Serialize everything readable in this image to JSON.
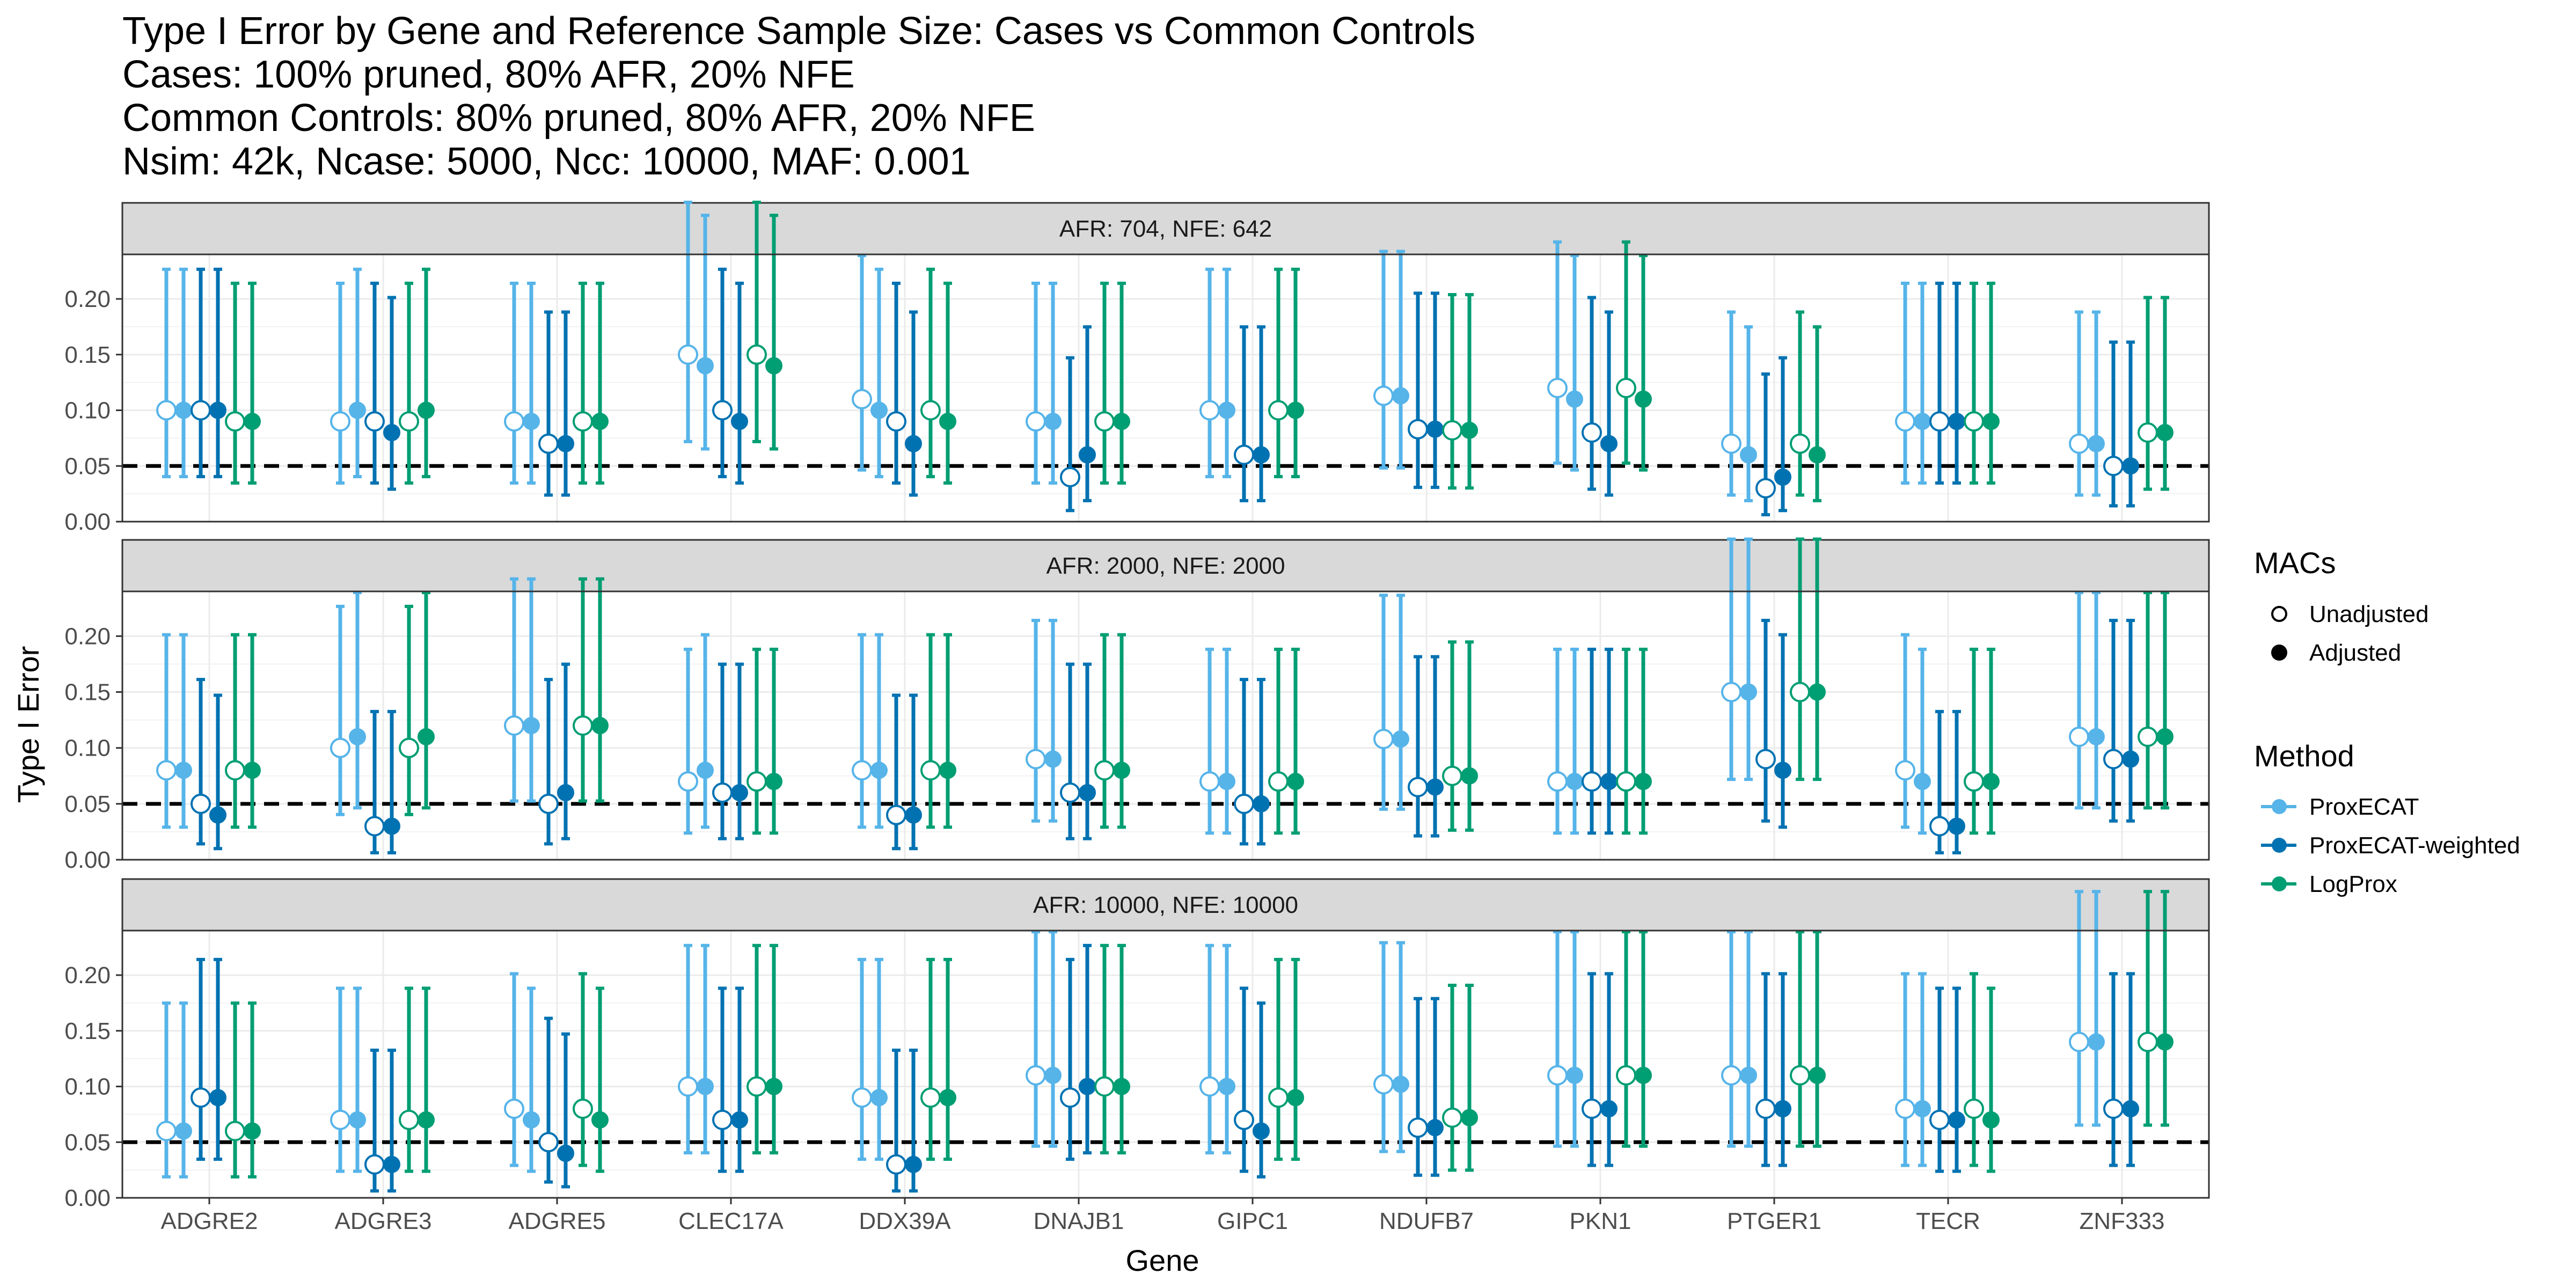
{
  "chart_data": {
    "type": "scatter",
    "title_lines": [
      "Type I Error by Gene and Reference Sample Size: Cases vs Common Controls",
      "Cases: 100% pruned, 80% AFR, 20% NFE",
      "Common Controls: 80% pruned, 80% AFR, 20% NFE",
      "Nsim: 42k, Ncase: 5000, Ncc: 10000, MAF: 0.001"
    ],
    "xlabel": "Gene",
    "ylabel": "Type I Error",
    "ylim": [
      0,
      0.24
    ],
    "yticks": [
      0.0,
      0.05,
      0.1,
      0.15,
      0.2
    ],
    "ytick_labels": [
      "0.00",
      "0.05",
      "0.10",
      "0.15",
      "0.20"
    ],
    "reference_line": 0.05,
    "genes": [
      "ADGRE2",
      "ADGRE3",
      "ADGRE5",
      "CLEC17A",
      "DDX39A",
      "DNAJB1",
      "GIPC1",
      "NDUFB7",
      "PKN1",
      "PTGER1",
      "TECR",
      "ZNF333"
    ],
    "methods": [
      {
        "name": "ProxECAT",
        "color": "#56B4E9"
      },
      {
        "name": "ProxECAT-weighted",
        "color": "#0072B2"
      },
      {
        "name": "LogProx",
        "color": "#009E73"
      }
    ],
    "macs": [
      {
        "name": "Unadjusted",
        "shape": "open-circle"
      },
      {
        "name": "Adjusted",
        "shape": "filled-circle"
      }
    ],
    "legend": {
      "macs_title": "MACs",
      "method_title": "Method",
      "placement": "right"
    },
    "panels": [
      {
        "label": "AFR: 704, NFE: 642",
        "values": {
          "ProxECAT": {
            "Unadjusted": [
              0.1,
              0.09,
              0.09,
              0.15,
              0.11,
              0.09,
              0.1,
              0.113,
              0.12,
              0.07,
              0.09,
              0.07
            ],
            "Adjusted": [
              0.1,
              0.1,
              0.09,
              0.14,
              0.1,
              0.09,
              0.1,
              0.113,
              0.11,
              0.06,
              0.09,
              0.07
            ]
          },
          "ProxECAT-weighted": {
            "Unadjusted": [
              0.1,
              0.09,
              0.07,
              0.1,
              0.09,
              0.04,
              0.06,
              0.083,
              0.08,
              0.03,
              0.09,
              0.05
            ],
            "Adjusted": [
              0.1,
              0.08,
              0.07,
              0.09,
              0.07,
              0.06,
              0.06,
              0.083,
              0.07,
              0.04,
              0.09,
              0.05
            ]
          },
          "LogProx": {
            "Unadjusted": [
              0.09,
              0.09,
              0.09,
              0.15,
              0.1,
              0.09,
              0.1,
              0.082,
              0.12,
              0.07,
              0.09,
              0.08
            ],
            "Adjusted": [
              0.09,
              0.1,
              0.09,
              0.14,
              0.09,
              0.09,
              0.1,
              0.082,
              0.11,
              0.06,
              0.09,
              0.08
            ]
          }
        }
      },
      {
        "label": "AFR: 2000, NFE: 2000",
        "values": {
          "ProxECAT": {
            "Unadjusted": [
              0.08,
              0.1,
              0.12,
              0.07,
              0.08,
              0.09,
              0.07,
              0.108,
              0.07,
              0.15,
              0.08,
              0.11
            ],
            "Adjusted": [
              0.08,
              0.11,
              0.12,
              0.08,
              0.08,
              0.09,
              0.07,
              0.108,
              0.07,
              0.15,
              0.07,
              0.11
            ]
          },
          "ProxECAT-weighted": {
            "Unadjusted": [
              0.05,
              0.03,
              0.05,
              0.06,
              0.04,
              0.06,
              0.05,
              0.065,
              0.07,
              0.09,
              0.03,
              0.09
            ],
            "Adjusted": [
              0.04,
              0.03,
              0.06,
              0.06,
              0.04,
              0.06,
              0.05,
              0.065,
              0.07,
              0.08,
              0.03,
              0.09
            ]
          },
          "LogProx": {
            "Unadjusted": [
              0.08,
              0.1,
              0.12,
              0.07,
              0.08,
              0.08,
              0.07,
              0.075,
              0.07,
              0.15,
              0.07,
              0.11
            ],
            "Adjusted": [
              0.08,
              0.11,
              0.12,
              0.07,
              0.08,
              0.08,
              0.07,
              0.075,
              0.07,
              0.15,
              0.07,
              0.11
            ]
          }
        }
      },
      {
        "label": "AFR: 10000, NFE: 10000",
        "values": {
          "ProxECAT": {
            "Unadjusted": [
              0.06,
              0.07,
              0.08,
              0.1,
              0.09,
              0.11,
              0.1,
              0.102,
              0.11,
              0.11,
              0.08,
              0.14
            ],
            "Adjusted": [
              0.06,
              0.07,
              0.07,
              0.1,
              0.09,
              0.11,
              0.1,
              0.102,
              0.11,
              0.11,
              0.08,
              0.14
            ]
          },
          "ProxECAT-weighted": {
            "Unadjusted": [
              0.09,
              0.03,
              0.05,
              0.07,
              0.03,
              0.09,
              0.07,
              0.063,
              0.08,
              0.08,
              0.07,
              0.08
            ],
            "Adjusted": [
              0.09,
              0.03,
              0.04,
              0.07,
              0.03,
              0.1,
              0.06,
              0.063,
              0.08,
              0.08,
              0.07,
              0.08
            ]
          },
          "LogProx": {
            "Unadjusted": [
              0.06,
              0.07,
              0.08,
              0.1,
              0.09,
              0.1,
              0.09,
              0.072,
              0.11,
              0.11,
              0.08,
              0.14
            ],
            "Adjusted": [
              0.06,
              0.07,
              0.07,
              0.1,
              0.09,
              0.1,
              0.09,
              0.072,
              0.11,
              0.11,
              0.07,
              0.14
            ]
          }
        }
      }
    ]
  }
}
